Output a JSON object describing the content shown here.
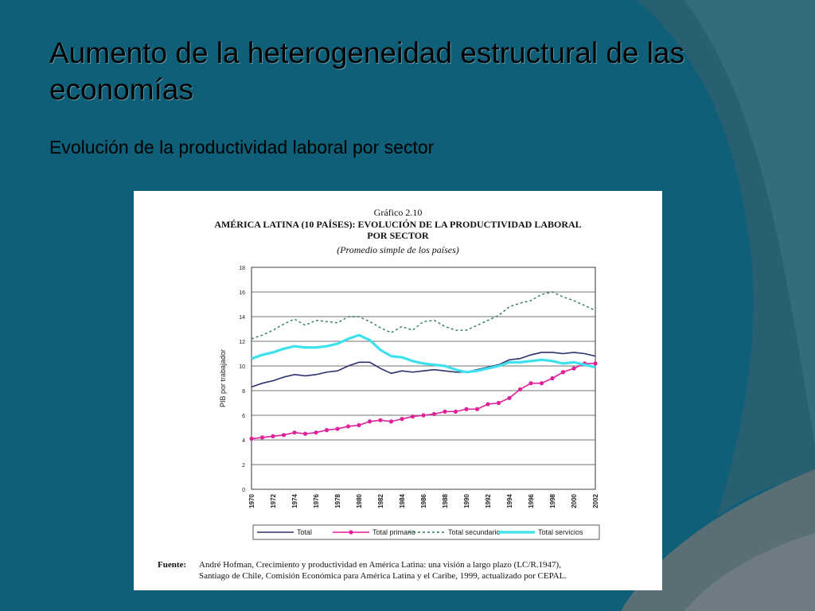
{
  "slide": {
    "title": "Aumento de la heterogeneidad estructural de las economías",
    "subtitle": "Evolución de la productividad laboral por sector"
  },
  "figure": {
    "number": "Gráfico 2.10",
    "title_line1": "AMÉRICA LATINA (10 PAÍSES): EVOLUCIÓN DE LA PRODUCTIVIDAD LABORAL",
    "title_line2": "POR SECTOR",
    "note": "(Promedio simple de los países)",
    "source_label": "Fuente",
    "source_line1": "André Hofman, Crecimiento y productividad en América Latina: una visión a largo plazo (LC/R.1947),",
    "source_line2": "Santiago de Chile, Comisión Económica para América Latina y el Caribe, 1999, actualizado por CEPAL."
  },
  "colors": {
    "background": "#0f5f78",
    "total": "#2b2f6b",
    "primario": "#e0209a",
    "secundario": "#2e7d4f",
    "servicios": "#3fe0ee"
  },
  "chart_data": {
    "type": "line",
    "ylabel": "PIB por trabajador",
    "xlabel": "",
    "ylim": [
      0,
      18
    ],
    "yticks": [
      0,
      2,
      4,
      6,
      8,
      10,
      12,
      14,
      16,
      18
    ],
    "x": [
      1970,
      1971,
      1972,
      1973,
      1974,
      1975,
      1976,
      1977,
      1978,
      1979,
      1980,
      1981,
      1982,
      1983,
      1984,
      1985,
      1986,
      1987,
      1988,
      1989,
      1990,
      1991,
      1992,
      1993,
      1994,
      1995,
      1996,
      1997,
      1998,
      1999,
      2000,
      2001,
      2002
    ],
    "xtick_labels": [
      "1970",
      "1972",
      "1974",
      "1976",
      "1978",
      "1980",
      "1982",
      "1984",
      "1986",
      "1988",
      "1990",
      "1992",
      "1994",
      "1996",
      "1998",
      "2000",
      "2002"
    ],
    "grid": true,
    "legend": "bottom",
    "series": [
      {
        "name": "Total",
        "key": "total",
        "values": [
          8.3,
          8.6,
          8.8,
          9.1,
          9.3,
          9.2,
          9.3,
          9.5,
          9.6,
          10.0,
          10.3,
          10.3,
          9.8,
          9.4,
          9.6,
          9.5,
          9.6,
          9.7,
          9.6,
          9.5,
          9.5,
          9.7,
          9.9,
          10.1,
          10.5,
          10.6,
          10.9,
          11.1,
          11.1,
          11.0,
          11.1,
          11.0,
          10.8
        ]
      },
      {
        "name": "Total primario",
        "key": "primario",
        "values": [
          4.1,
          4.2,
          4.3,
          4.4,
          4.6,
          4.5,
          4.6,
          4.8,
          4.9,
          5.1,
          5.2,
          5.5,
          5.6,
          5.5,
          5.7,
          5.9,
          6.0,
          6.1,
          6.3,
          6.3,
          6.5,
          6.5,
          6.9,
          7.0,
          7.4,
          8.1,
          8.6,
          8.6,
          9.0,
          9.5,
          9.8,
          10.2,
          10.2
        ]
      },
      {
        "name": "Total secundario",
        "key": "secundario",
        "values": [
          12.2,
          12.5,
          12.9,
          13.4,
          13.8,
          13.3,
          13.7,
          13.6,
          13.5,
          14.0,
          14.0,
          13.6,
          13.1,
          12.7,
          13.2,
          12.9,
          13.6,
          13.7,
          13.2,
          12.9,
          12.9,
          13.3,
          13.7,
          14.1,
          14.8,
          15.1,
          15.3,
          15.8,
          16.0,
          15.6,
          15.3,
          14.9,
          14.5
        ]
      },
      {
        "name": "Total servicios",
        "key": "servicios",
        "values": [
          10.6,
          10.9,
          11.1,
          11.4,
          11.6,
          11.5,
          11.5,
          11.6,
          11.8,
          12.2,
          12.5,
          12.1,
          11.3,
          10.8,
          10.7,
          10.4,
          10.2,
          10.1,
          10.0,
          9.7,
          9.5,
          9.6,
          9.8,
          10.0,
          10.3,
          10.3,
          10.4,
          10.5,
          10.4,
          10.2,
          10.3,
          10.1,
          9.9
        ]
      }
    ]
  }
}
